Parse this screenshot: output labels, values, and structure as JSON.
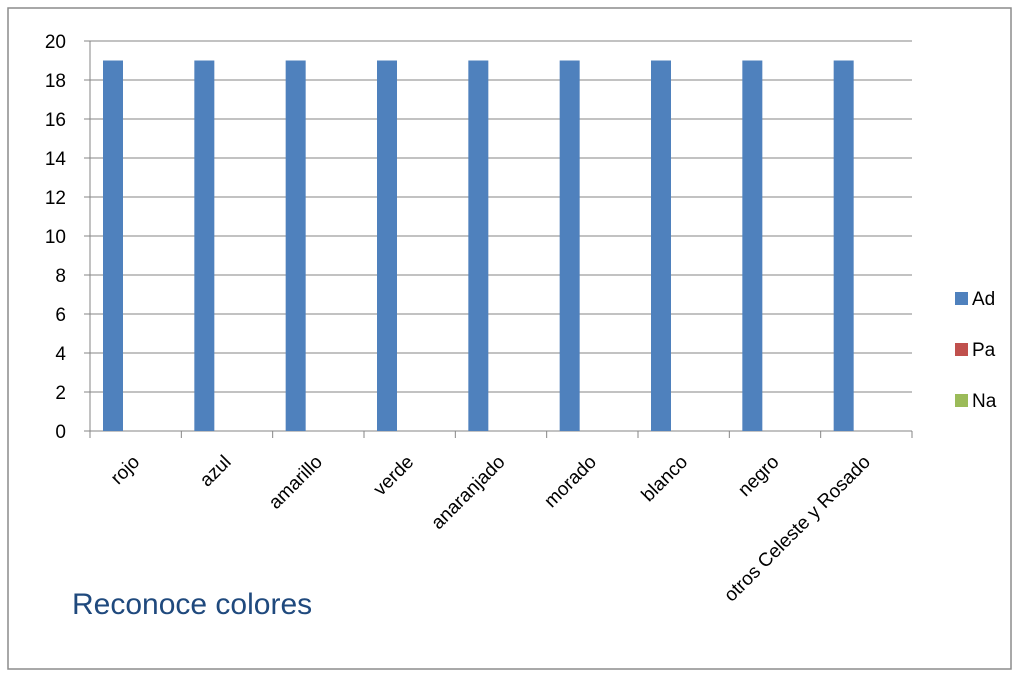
{
  "chart_data": {
    "type": "bar",
    "title": "Reconoce colores",
    "categories": [
      "rojo",
      "azul",
      "amarillo",
      "verde",
      "anaranjado",
      "morado",
      "blanco",
      "negro",
      "otros Celeste y Rosado"
    ],
    "series": [
      {
        "name": "Ad",
        "color": "#4f81bd",
        "values": [
          19,
          19,
          19,
          19,
          19,
          19,
          19,
          19,
          19
        ]
      },
      {
        "name": "Pa",
        "color": "#c0504d",
        "values": [
          0,
          0,
          0,
          0,
          0,
          0,
          0,
          0,
          0
        ]
      },
      {
        "name": "Na",
        "color": "#9bbb59",
        "values": [
          0,
          0,
          0,
          0,
          0,
          0,
          0,
          0,
          0
        ]
      }
    ],
    "ylim": [
      0,
      20
    ],
    "yticks": [
      0,
      2,
      4,
      6,
      8,
      10,
      12,
      14,
      16,
      18,
      20
    ],
    "grid": true,
    "legend_position": "right",
    "title_position": "bottom-left"
  }
}
